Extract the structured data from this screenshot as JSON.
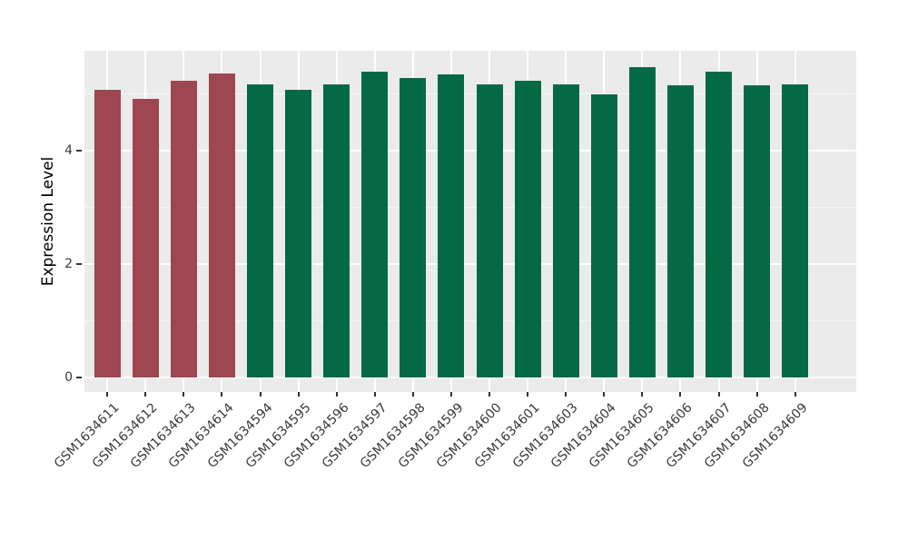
{
  "figure": {
    "background": "#FFFFFF",
    "panel_background": "#EBEBEB",
    "grid_major_color": "#FFFFFF",
    "grid_minor_color": "#F6F6F6",
    "tick_color": "#333333",
    "axis_text_color": "#3A3A3A",
    "axis_title_color": "#000000",
    "accent_colors": {
      "control_red": "#9E4652",
      "sample_green": "#046A46"
    }
  },
  "chart_data": {
    "type": "bar",
    "title": "",
    "xlabel": "",
    "ylabel": "Expression Level",
    "categories": [
      "GSM1634611",
      "GSM1634612",
      "GSM1634613",
      "GSM1634614",
      "GSM1634594",
      "GSM1634595",
      "GSM1634596",
      "GSM1634597",
      "GSM1634598",
      "GSM1634599",
      "GSM1634600",
      "GSM1634601",
      "GSM1634603",
      "GSM1634604",
      "GSM1634605",
      "GSM1634606",
      "GSM1634607",
      "GSM1634608",
      "GSM1634609"
    ],
    "values": [
      5.07,
      4.92,
      5.23,
      5.36,
      5.17,
      5.08,
      5.17,
      5.39,
      5.28,
      5.34,
      5.17,
      5.23,
      5.17,
      5.0,
      5.47,
      5.16,
      5.4,
      5.16,
      5.17
    ],
    "bar_colors": [
      "#9E4652",
      "#9E4652",
      "#9E4652",
      "#9E4652",
      "#046A46",
      "#046A46",
      "#046A46",
      "#046A46",
      "#046A46",
      "#046A46",
      "#046A46",
      "#046A46",
      "#046A46",
      "#046A46",
      "#046A46",
      "#046A46",
      "#046A46",
      "#046A46",
      "#046A46"
    ],
    "yticks": [
      0,
      2,
      4
    ],
    "yticks_minor": [
      1,
      3,
      5
    ],
    "ylim": [
      -0.27,
      5.76
    ],
    "bar_width_frac": 0.7,
    "x_tick_rotation_deg": 45,
    "grid": true,
    "legend": "none"
  }
}
